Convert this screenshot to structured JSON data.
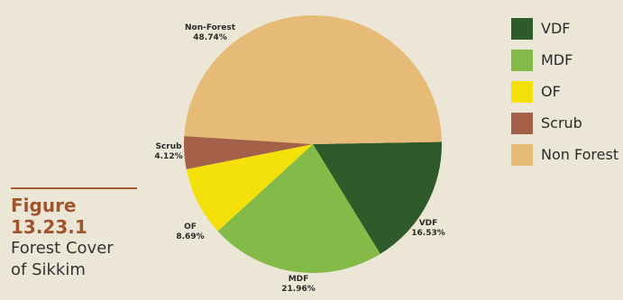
{
  "figure": {
    "number": "Figure 13.23.1",
    "caption_lines": [
      "Forest Cover",
      "of Sikkim"
    ]
  },
  "chart_data": {
    "type": "pie",
    "slices": [
      {
        "key": "non-forest",
        "label": "Non-Forest",
        "value_text": "48.74%",
        "value": 48.74,
        "color": "#e6bb78"
      },
      {
        "key": "vdf",
        "label": "VDF",
        "value_text": "16.53%",
        "value": 16.53,
        "color": "#2f5a2a"
      },
      {
        "key": "mdf",
        "label": "MDF",
        "value_text": "21.96%",
        "value": 21.96,
        "color": "#84bb48"
      },
      {
        "key": "of",
        "label": "OF",
        "value_text": "8.69%",
        "value": 8.69,
        "color": "#f4e10a"
      },
      {
        "key": "scrub",
        "label": "Scrub",
        "value_text": "4.12%",
        "value": 4.12,
        "color": "#a5604a"
      }
    ],
    "legend": [
      {
        "label": "VDF",
        "color": "#2f5a2a"
      },
      {
        "label": "MDF",
        "color": "#84bb48"
      },
      {
        "label": "OF",
        "color": "#f4e10a"
      },
      {
        "label": "Scrub",
        "color": "#a5604a"
      },
      {
        "label": "Non Forest",
        "color": "#e6bb78"
      }
    ],
    "legend_position": "top-right"
  }
}
